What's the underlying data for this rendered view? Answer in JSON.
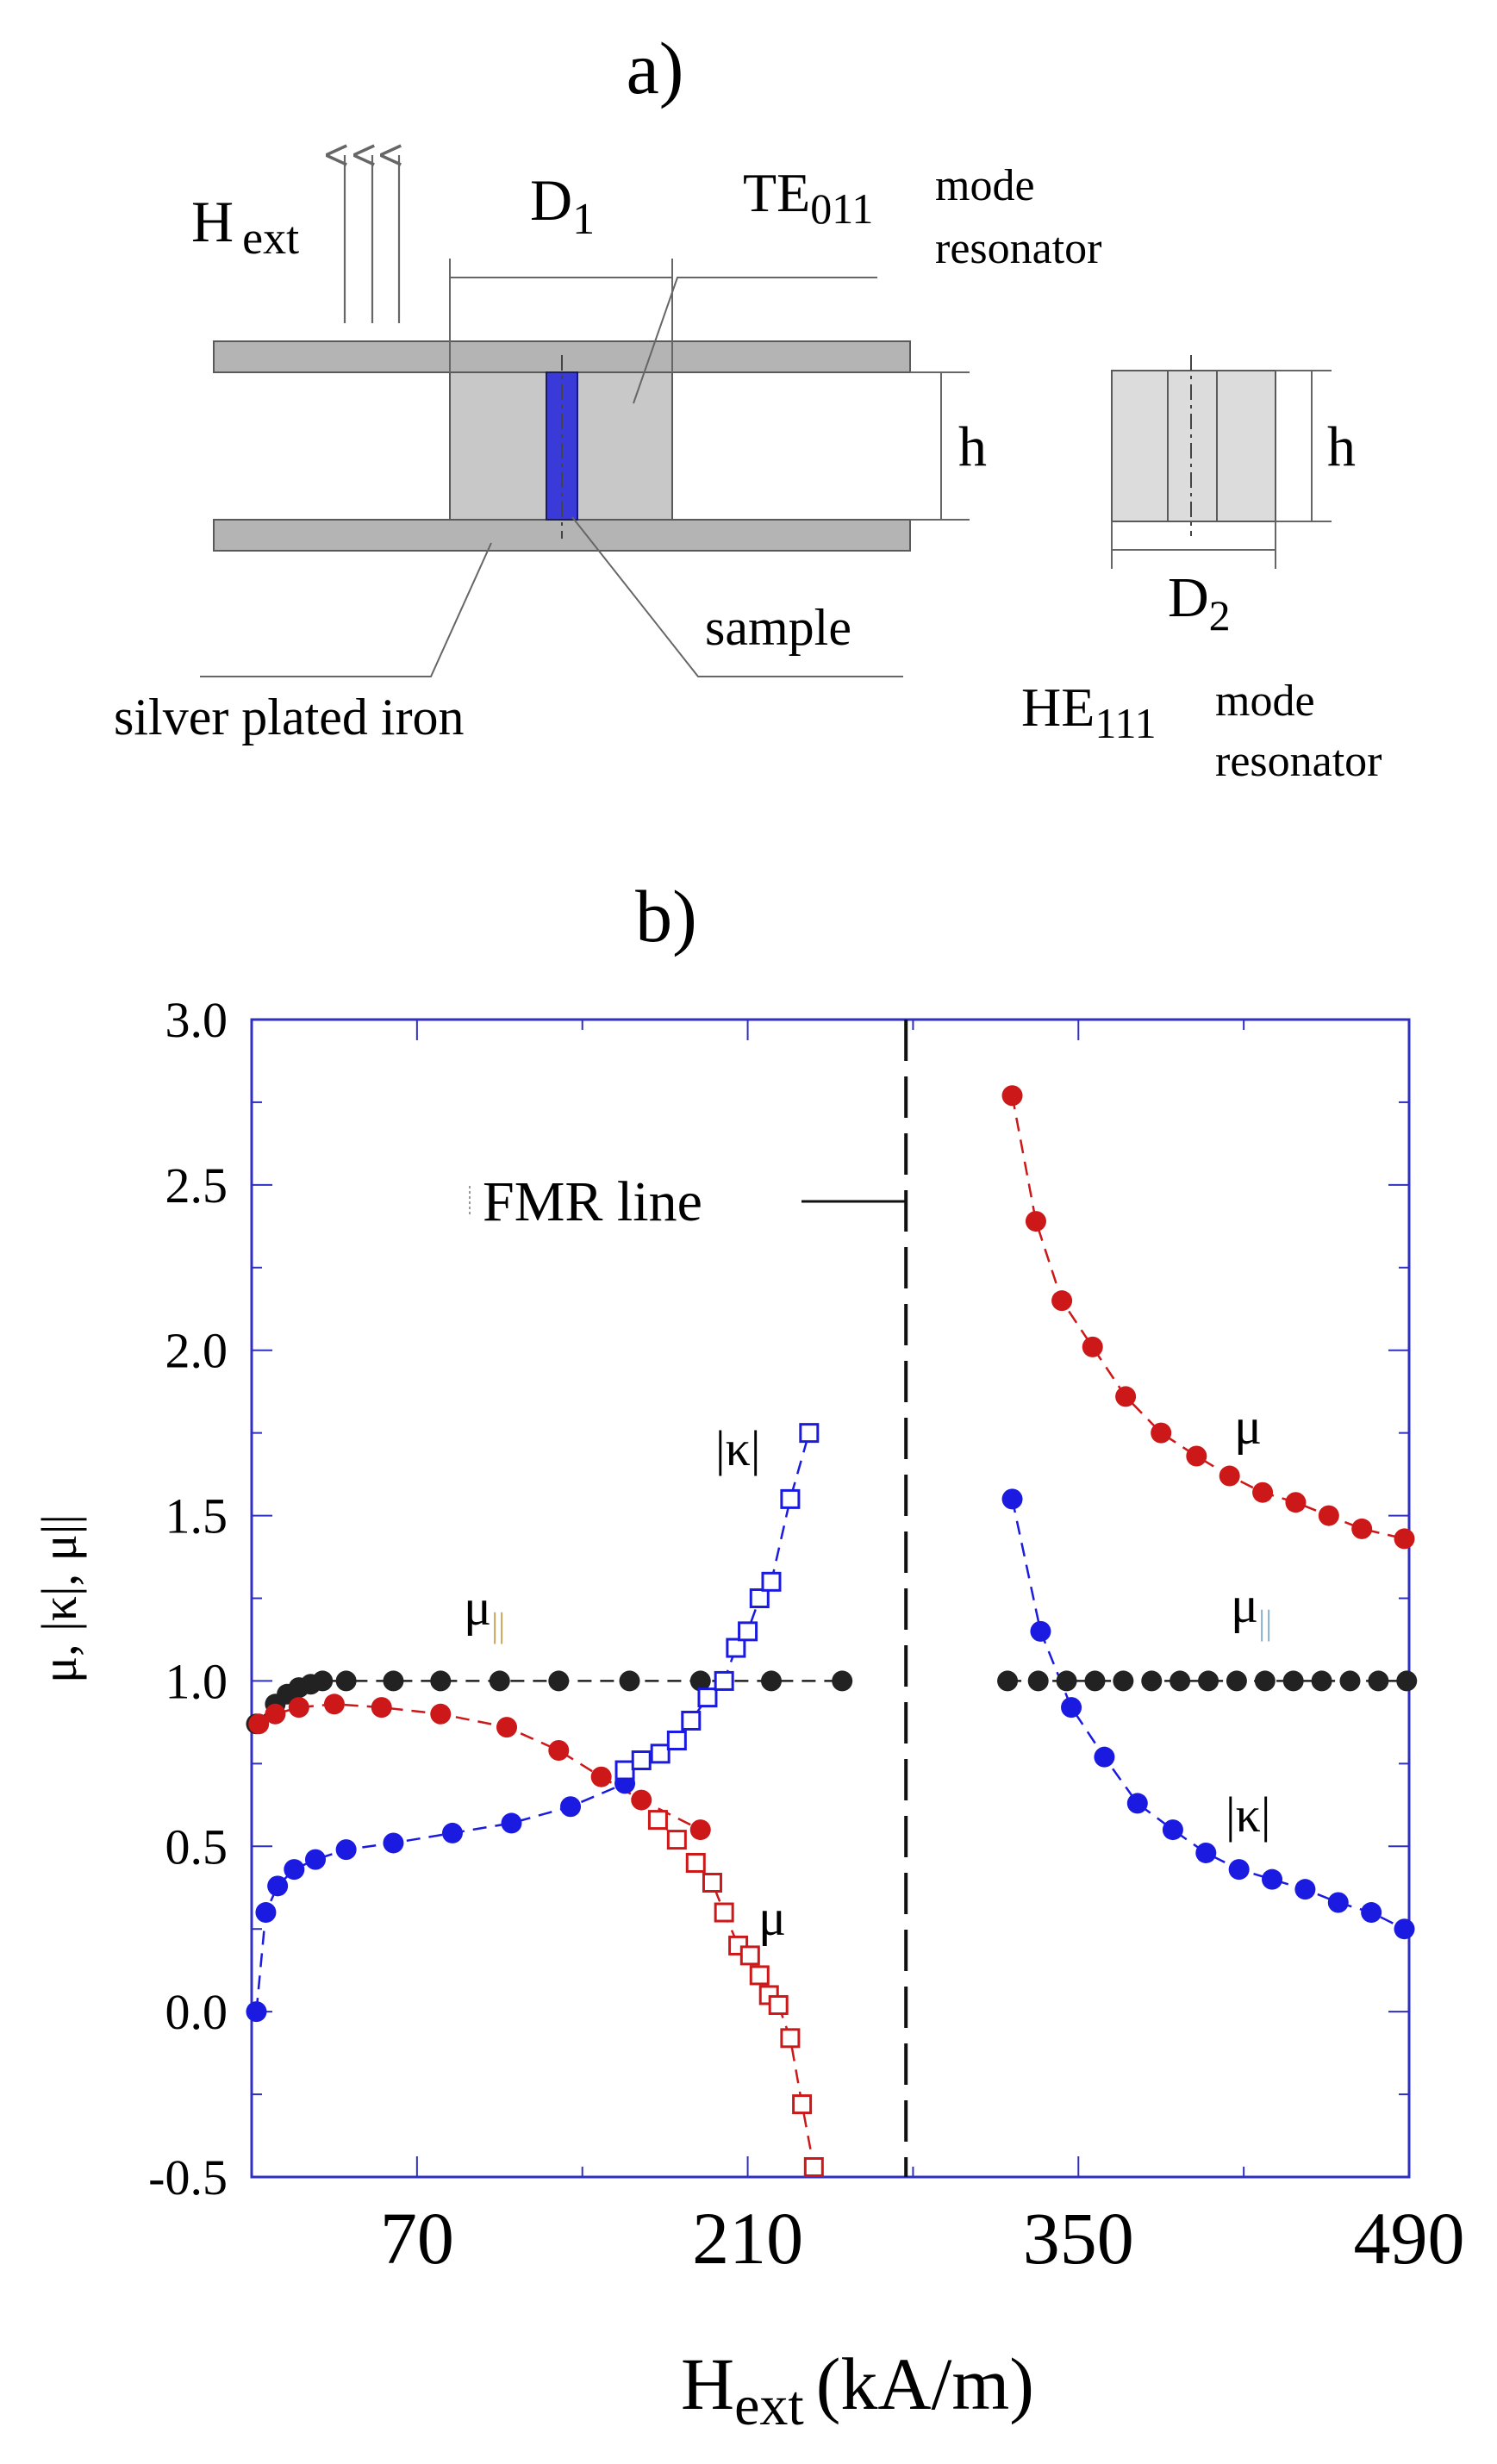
{
  "panel_a": {
    "label": "a)",
    "h_ext_main": "H",
    "h_ext_sub": "ext",
    "d1_main": "D",
    "d1_sub": "1",
    "te_main": "TE",
    "te_sub": "011",
    "te_mode": "mode",
    "te_resonator": "resonator",
    "h_label": "h",
    "sample_label": "sample",
    "iron_label": "silver plated iron",
    "d2_main": "D",
    "d2_sub": "2",
    "h2_label": "h",
    "he_main": "HE",
    "he_sub": "111",
    "he_mode": "mode",
    "he_resonator": "resonator",
    "colors": {
      "sample": "#3a3ad8",
      "dielectric": "#c8c8c8",
      "plate": "#b4b4b4"
    }
  },
  "panel_b": {
    "label": "b)",
    "fmr_label": "FMR line",
    "series_labels": {
      "mu_par_left_main": "μ",
      "mu_par_left_sub": "||",
      "kappa_left": "|κ|",
      "mu_left": "μ",
      "mu_right": "μ",
      "mu_par_right_main": "μ",
      "mu_par_right_sub": "||",
      "kappa_right": "|κ|"
    },
    "ylabel": "μ, |κ|, μ||",
    "xlabel_main": "H",
    "xlabel_sub": "ext",
    "xlabel_unit": "(kA/m)"
  },
  "chart_data": {
    "type": "scatter",
    "title": "",
    "xlabel": "Hext (kA/m)",
    "ylabel": "μ, |κ|, μ||",
    "xlim": [
      0,
      490
    ],
    "ylim": [
      -0.5,
      3.0
    ],
    "xticks": [
      70,
      210,
      350,
      490
    ],
    "yticks": [
      3.0,
      2.5,
      2.0,
      1.5,
      1.0,
      0.5,
      0.0,
      -0.5
    ],
    "ytick_labels": [
      "3.0",
      "2.5",
      "2.0",
      "1.5",
      "1.0",
      "0.5",
      "0.0",
      "-0.5"
    ],
    "fmr_line_x": 277,
    "colors": {
      "black": "#222222",
      "red": "#cc1818",
      "blue": "#1a1ae0",
      "axis": "#3030c0"
    },
    "series": [
      {
        "name": "μ|| (below FMR)",
        "color": "black",
        "marker": "filled",
        "x": [
          2,
          10,
          15,
          20,
          25,
          30,
          40,
          60,
          80,
          105,
          130,
          160,
          190,
          220,
          250
        ],
        "y": [
          0.87,
          0.93,
          0.96,
          0.98,
          0.99,
          1.0,
          1.0,
          1.0,
          1.0,
          1.0,
          1.0,
          1.0,
          1.0,
          1.0,
          1.0
        ]
      },
      {
        "name": "μ (below FMR, filled)",
        "color": "red",
        "marker": "filled",
        "x": [
          3,
          10,
          20,
          35,
          55,
          80,
          108,
          130,
          148,
          165,
          190
        ],
        "y": [
          0.87,
          0.9,
          0.92,
          0.93,
          0.92,
          0.9,
          0.86,
          0.79,
          0.71,
          0.64,
          0.55
        ]
      },
      {
        "name": "μ (below FMR, open)",
        "color": "red",
        "marker": "open",
        "x": [
          172,
          180,
          188,
          195,
          200,
          206,
          211,
          215,
          219,
          223,
          228,
          233,
          238
        ],
        "y": [
          0.58,
          0.52,
          0.45,
          0.39,
          0.3,
          0.2,
          0.17,
          0.11,
          0.05,
          0.02,
          -0.08,
          -0.28,
          -0.47
        ]
      },
      {
        "name": "|κ| (below FMR, filled)",
        "color": "blue",
        "marker": "filled",
        "x": [
          2,
          6,
          11,
          18,
          27,
          40,
          60,
          85,
          110,
          135,
          158
        ],
        "y": [
          0.0,
          0.3,
          0.38,
          0.43,
          0.46,
          0.49,
          0.51,
          0.54,
          0.57,
          0.62,
          0.69
        ]
      },
      {
        "name": "|κ| (below FMR, open)",
        "color": "blue",
        "marker": "open",
        "x": [
          158,
          165,
          173,
          180,
          186,
          193,
          200,
          205,
          210,
          215,
          220,
          228,
          236
        ],
        "y": [
          0.73,
          0.76,
          0.78,
          0.82,
          0.88,
          0.95,
          1.0,
          1.1,
          1.15,
          1.25,
          1.3,
          1.55,
          1.75
        ]
      },
      {
        "name": "μ (above FMR)",
        "color": "red",
        "marker": "filled",
        "x": [
          322,
          332,
          343,
          356,
          370,
          385,
          400,
          414,
          428,
          442,
          456,
          470,
          488
        ],
        "y": [
          2.77,
          2.39,
          2.15,
          2.01,
          1.86,
          1.75,
          1.68,
          1.62,
          1.57,
          1.54,
          1.5,
          1.46,
          1.43
        ]
      },
      {
        "name": "|κ| (above FMR)",
        "color": "blue",
        "marker": "filled",
        "x": [
          322,
          334,
          347,
          361,
          375,
          390,
          404,
          418,
          432,
          446,
          460,
          474,
          488
        ],
        "y": [
          1.55,
          1.15,
          0.92,
          0.77,
          0.63,
          0.55,
          0.48,
          0.43,
          0.4,
          0.37,
          0.33,
          0.3,
          0.25
        ]
      },
      {
        "name": "μ|| (above FMR)",
        "color": "black",
        "marker": "filled",
        "x": [
          320,
          333,
          345,
          357,
          369,
          381,
          393,
          405,
          417,
          429,
          441,
          453,
          465,
          477,
          489
        ],
        "y": [
          1.0,
          1.0,
          1.0,
          1.0,
          1.0,
          1.0,
          1.0,
          1.0,
          1.0,
          1.0,
          1.0,
          1.0,
          1.0,
          1.0,
          1.0
        ]
      }
    ]
  }
}
